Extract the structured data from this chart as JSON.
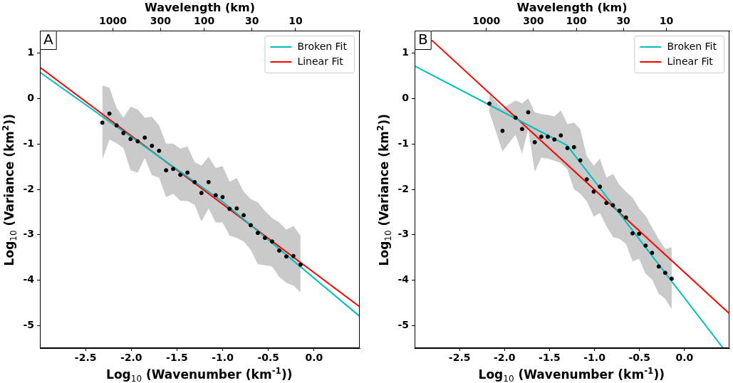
{
  "chart_data": [
    {
      "type": "scatter",
      "xlabel": "Log$_{10}$ (Wavenumber (km$^{-1}$))",
      "ylabel": "Log$_{10}$ (Variance (km$^{2}$))",
      "x2label": "Wavelength (km)",
      "xlim": [
        -3,
        0.5
      ],
      "ylim": [
        -5.5,
        1.5
      ],
      "xticks": [
        -2.5,
        {
          "value": -2,
          "label": "-2.0"
        },
        -1.5,
        {
          "value": -1,
          "label": "-1.0"
        },
        -0.5,
        {
          "value": 0,
          "label": "0.0"
        }
      ],
      "yticks": [
        -5,
        -4,
        -3,
        -2,
        -1,
        0,
        1
      ],
      "x2lim": [
        6283,
        1.987
      ],
      "x2ticks": [
        1000,
        300,
        100,
        30,
        10
      ],
      "log": "x2",
      "grid": false,
      "legend": "top right",
      "annotations": [
        "A"
      ],
      "series": [
        {
          "type": "scatter",
          "color": "#000000",
          "marker": "circle",
          "x": [
            -2.317,
            -2.239,
            -2.161,
            -2.086,
            -2.008,
            -1.93,
            -1.852,
            -1.774,
            -1.696,
            -1.619,
            -1.541,
            -1.463,
            -1.385,
            -1.307,
            -1.232,
            -1.154,
            -1.076,
            -1.001,
            -0.924,
            -0.846,
            -0.77,
            -0.693,
            -0.615,
            -0.537,
            -0.459,
            -0.381,
            -0.303,
            -0.226,
            -0.148
          ],
          "values": [
            -0.53,
            -0.33,
            -0.59,
            -0.76,
            -0.89,
            -0.94,
            -0.86,
            -1.04,
            -1.15,
            -1.58,
            -1.55,
            -1.68,
            -1.63,
            -1.84,
            -2.08,
            -1.84,
            -2.13,
            -2.17,
            -2.43,
            -2.42,
            -2.57,
            -2.79,
            -2.96,
            -3.07,
            -3.15,
            -3.35,
            -3.48,
            -3.47,
            -3.66
          ],
          "upper": [
            0.29,
            0.24,
            -0.2,
            -0.42,
            -0.18,
            -0.24,
            -0.42,
            -0.4,
            -0.59,
            -0.99,
            -0.99,
            -1.1,
            -1.05,
            -1.4,
            -1.48,
            -1.28,
            -1.53,
            -1.49,
            -1.83,
            -1.75,
            -2.05,
            -2.21,
            -2.29,
            -2.47,
            -2.63,
            -2.73,
            -2.89,
            -2.81,
            -3.02
          ],
          "lower": [
            -1.35,
            -0.9,
            -0.98,
            -1.09,
            -1.58,
            -1.63,
            -1.31,
            -1.69,
            -1.74,
            -2.17,
            -2.1,
            -2.25,
            -2.26,
            -2.34,
            -2.71,
            -2.42,
            -2.73,
            -2.73,
            -3.02,
            -3.07,
            -3.15,
            -3.33,
            -3.65,
            -3.67,
            -3.7,
            -3.93,
            -4.06,
            -4.12,
            -4.27
          ]
        },
        {
          "type": "line",
          "name": "Broken Fit",
          "color": "#00bfbf",
          "x": [
            -3,
            -1,
            0.5
          ],
          "values": [
            0.58,
            -2.27,
            -4.8
          ]
        },
        {
          "type": "line",
          "name": "Linear Fit",
          "color": "#ff0000",
          "x": [
            -3,
            0.5
          ],
          "values": [
            0.69,
            -4.59
          ]
        }
      ]
    },
    {
      "type": "scatter",
      "xlabel": "Log$_{10}$ (Wavenumber (km$^{-1}$))",
      "ylabel": "Log$_{10}$ (Variance (km$^{2}$))",
      "x2label": "Wavelength (km)",
      "xlim": [
        -3,
        0.5
      ],
      "ylim": [
        -5.5,
        1.5
      ],
      "xticks": [
        -2.5,
        {
          "value": -2,
          "label": "-2.0"
        },
        -1.5,
        {
          "value": -1,
          "label": "-1.0"
        },
        -0.5,
        {
          "value": 0,
          "label": "0.0"
        }
      ],
      "yticks": [
        -5,
        -4,
        -3,
        -2,
        -1,
        0,
        1
      ],
      "x2lim": [
        6283,
        1.987
      ],
      "x2ticks": [
        1000,
        300,
        100,
        30,
        10
      ],
      "log": "x2",
      "grid": false,
      "legend": "top right",
      "annotations": [
        "B"
      ],
      "series": [
        {
          "type": "scatter",
          "color": "#000000",
          "marker": "circle",
          "x": [
            -2.169,
            -2.023,
            -1.878,
            -1.805,
            -1.737,
            -1.664,
            -1.591,
            -1.519,
            -1.446,
            -1.374,
            -1.301,
            -1.228,
            -1.158,
            -1.086,
            -1.009,
            -0.94,
            -0.868,
            -0.795,
            -0.722,
            -0.65,
            -0.577,
            -0.504,
            -0.432,
            -0.36,
            -0.286,
            -0.214,
            -0.142
          ],
          "values": [
            -0.11,
            -0.71,
            -0.42,
            -0.67,
            -0.3,
            -0.96,
            -0.84,
            -0.84,
            -0.9,
            -0.81,
            -1.09,
            -1.07,
            -1.36,
            -1.78,
            -2.05,
            -1.94,
            -2.3,
            -2.35,
            -2.47,
            -2.62,
            -2.97,
            -2.98,
            -3.24,
            -3.4,
            -3.7,
            -3.84,
            -3.97
          ],
          "upper": [
            0.1,
            -0.22,
            -0.04,
            -0.1,
            0.01,
            -0.3,
            -0.34,
            -0.36,
            -0.39,
            -0.26,
            -0.56,
            -0.53,
            -0.67,
            -1.27,
            -1.48,
            -1.32,
            -1.74,
            -1.66,
            -1.9,
            -2.05,
            -2.18,
            -2.42,
            -2.58,
            -2.84,
            -3.1,
            -3.31,
            -3.28
          ],
          "lower": [
            -0.3,
            -1.16,
            -0.8,
            -1.21,
            -0.67,
            -1.61,
            -1.3,
            -1.32,
            -1.37,
            -1.42,
            -1.56,
            -2.0,
            -2.1,
            -2.26,
            -2.6,
            -2.52,
            -2.81,
            -3.05,
            -3.09,
            -3.2,
            -3.59,
            -3.53,
            -3.86,
            -3.99,
            -4.3,
            -4.41,
            -4.64
          ]
        },
        {
          "type": "line",
          "name": "Broken Fit",
          "color": "#00bfbf",
          "x": [
            -3,
            -1.305,
            0.43
          ],
          "values": [
            0.72,
            -1.03,
            -5.5
          ]
        },
        {
          "type": "line",
          "name": "Linear Fit",
          "color": "#ff0000",
          "x": [
            -2.81,
            0.5
          ],
          "values": [
            1.29,
            -4.74
          ]
        }
      ]
    }
  ]
}
